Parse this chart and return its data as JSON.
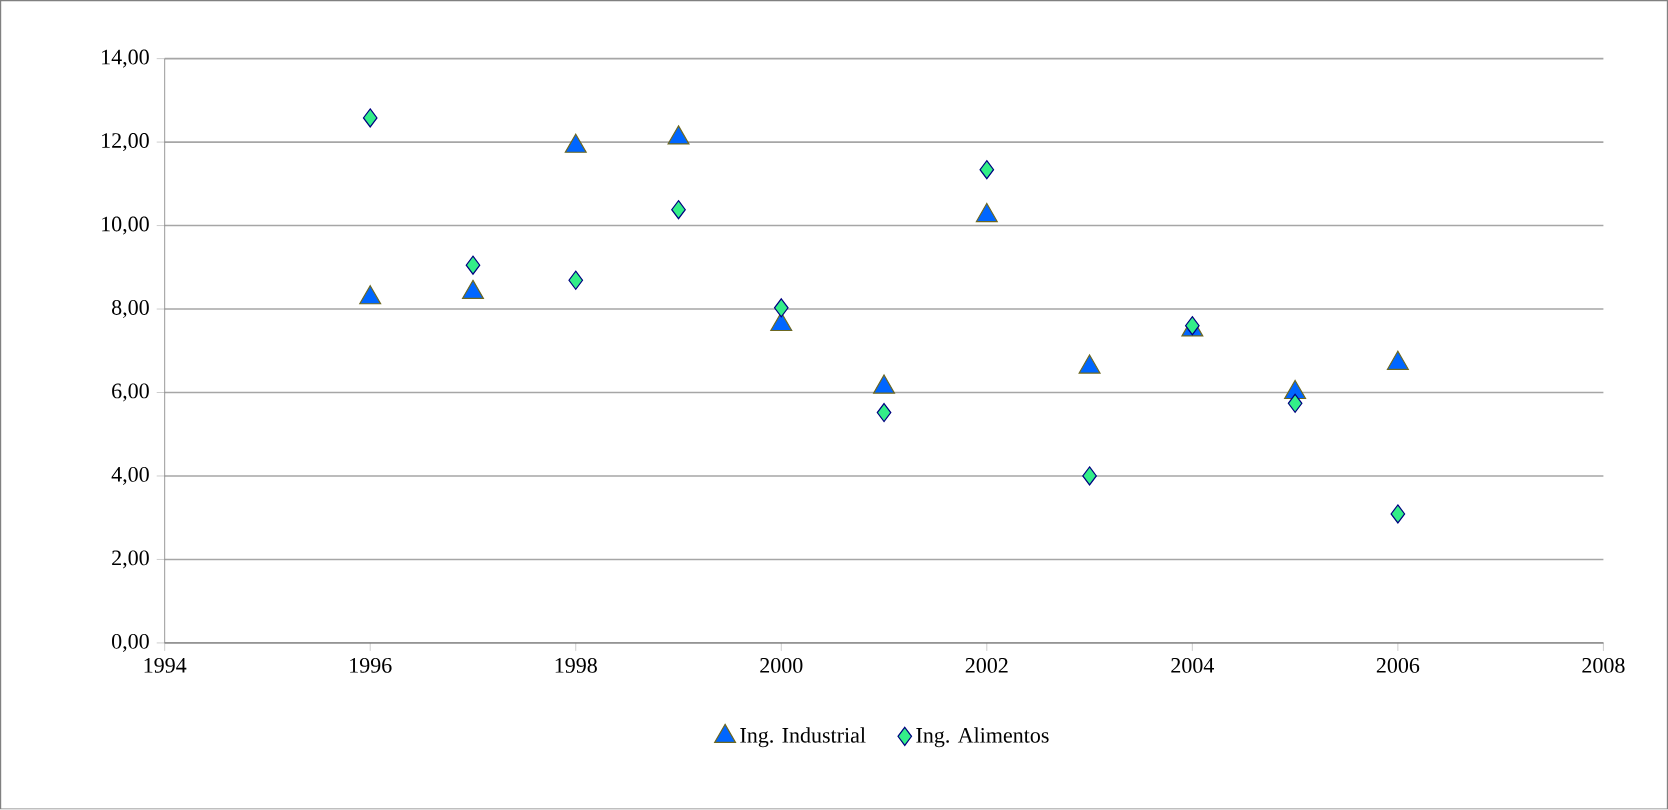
{
  "chart_data": {
    "type": "scatter",
    "x": [
      1996,
      1997,
      1998,
      1999,
      2000,
      2001,
      2002,
      2003,
      2004,
      2005,
      2006
    ],
    "series": [
      {
        "name": "Ing. Industrial",
        "color": "#0066ff",
        "marker": "triangle",
        "values": [
          8.27,
          8.4,
          11.9,
          12.1,
          7.63,
          6.13,
          10.24,
          6.61,
          7.5,
          6.0,
          6.7
        ]
      },
      {
        "name": "Ing. Alimentos",
        "color": "#33ee88",
        "marker": "diamond",
        "values": [
          12.58,
          9.05,
          8.69,
          10.38,
          8.03,
          5.52,
          11.34,
          4.0,
          7.6,
          5.74,
          3.09
        ]
      }
    ],
    "xlim": [
      1994,
      2008
    ],
    "xticks": [
      1994,
      1996,
      1998,
      2000,
      2002,
      2004,
      2006,
      2008
    ],
    "ylim": [
      0,
      14
    ],
    "yticks": [
      {
        "value": 0,
        "label": "0,00"
      },
      {
        "value": 2,
        "label": "2,00"
      },
      {
        "value": 4,
        "label": "4,00"
      },
      {
        "value": 6,
        "label": "6,00"
      },
      {
        "value": 8,
        "label": "8,00"
      },
      {
        "value": 10,
        "label": "10,00"
      },
      {
        "value": 12,
        "label": "12,00"
      },
      {
        "value": 14,
        "label": "14,00"
      }
    ],
    "grid": "y",
    "legend": "bottom"
  }
}
